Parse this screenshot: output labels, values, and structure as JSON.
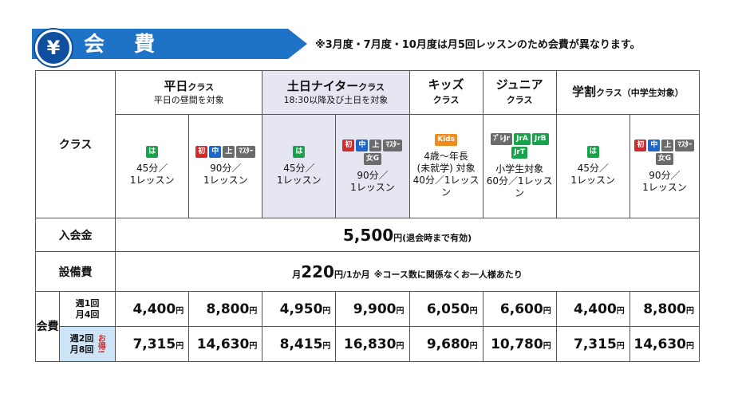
{
  "header": {
    "yen_symbol": "¥",
    "title": "会 費",
    "note": "※3月度・7月度・10月度は月5回レッスンのため会費が異なります。"
  },
  "colors": {
    "banner": "#1f73c6",
    "badge_green": "#17a34a",
    "badge_red": "#d32a2a",
    "badge_blue": "#1f66c6",
    "badge_gray": "#6b6b6b",
    "badge_orange": "#f08c1c",
    "highlight": "#e6e6f2",
    "freq_bg": "#cde4f6"
  },
  "table": {
    "class_label": "クラス",
    "groups": [
      {
        "name": "平日",
        "name_suffix": "クラス",
        "sub": "平日の昼間を対象"
      },
      {
        "name": "土日ナイター",
        "name_suffix": "クラス",
        "sub": "18:30以降及び土日を対象"
      },
      {
        "name": "キッズ",
        "name_suffix": "クラス",
        "sub": ""
      },
      {
        "name": "ジュニア",
        "name_suffix": "クラス",
        "sub": ""
      },
      {
        "name": "学割",
        "name_suffix": "クラス（中学生対象）",
        "sub": ""
      }
    ],
    "courses": [
      {
        "badges": [
          "は"
        ],
        "line1": "45分／",
        "line2": "1レッスン"
      },
      {
        "badges": [
          "初",
          "中",
          "上",
          "ﾏｽﾀｰ"
        ],
        "line1": "90分／",
        "line2": "1レッスン"
      },
      {
        "badges": [
          "は"
        ],
        "line1": "45分／",
        "line2": "1レッスン"
      },
      {
        "badges": [
          "初",
          "中",
          "上",
          "ﾏｽﾀｰ",
          "女G"
        ],
        "line1": "90分／",
        "line2": "1レッスン"
      },
      {
        "badges": [
          "Kids"
        ],
        "line1": "4歳〜年長",
        "line2": "(未就学) 対象",
        "line3": "40分／1レッスン"
      },
      {
        "badges": [
          "ﾌﾟﾚJr",
          "JrA",
          "JrB",
          "JrT"
        ],
        "line1": "小学生対象",
        "line2": "60分／1レッスン"
      },
      {
        "badges": [
          "は"
        ],
        "line1": "45分／",
        "line2": "1レッスン"
      },
      {
        "badges": [
          "初",
          "中",
          "上",
          "ﾏｽﾀｰ",
          "女G"
        ],
        "line1": "90分／",
        "line2": "1レッスン"
      }
    ],
    "entry_fee": {
      "label": "入会金",
      "amount": "5,500",
      "unit": "円",
      "note": "(退会時まで有効)"
    },
    "facility_fee": {
      "label": "設備費",
      "prefix": "月",
      "amount": "220",
      "unit": "円/1か月",
      "note": "※コース数に関係なくお一人様あたり"
    },
    "fees": {
      "label": "会費",
      "rows": [
        {
          "freq1": "週1回",
          "freq2": "月4回",
          "otoku": "",
          "prices": [
            "4,400",
            "8,800",
            "4,950",
            "9,900",
            "6,050",
            "6,600",
            "4,400",
            "8,800"
          ]
        },
        {
          "freq1": "週2回",
          "freq2": "月8回",
          "otoku": "お得!",
          "prices": [
            "7,315",
            "14,630",
            "8,415",
            "16,830",
            "9,680",
            "10,780",
            "7,315",
            "14,630"
          ]
        }
      ],
      "unit": "円"
    }
  }
}
